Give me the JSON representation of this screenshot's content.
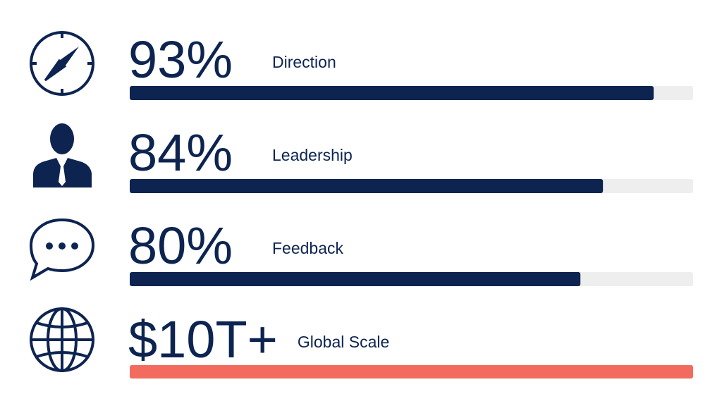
{
  "rows": [
    {
      "value_label": "93%",
      "value": 93,
      "label": "Direction"
    },
    {
      "value_label": "84%",
      "value": 84,
      "label": "Leadership"
    },
    {
      "value_label": "80%",
      "value": 80,
      "label": "Feedback"
    },
    {
      "value_label": "$10T+",
      "label": "Global Scale"
    }
  ],
  "xlim": [
    0,
    100
  ],
  "bar_color": "#0d2451",
  "track_color": "#eeeeee",
  "highlight_color": "#f26b5e"
}
